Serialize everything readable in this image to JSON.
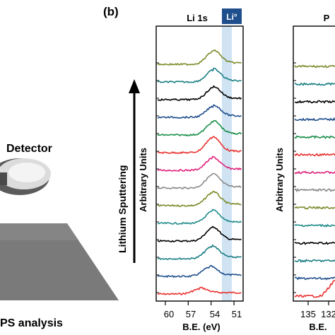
{
  "left_panel": {
    "detector_label": "Detector",
    "analysis_label": "PS analysis"
  },
  "panel_label": "(b)",
  "arrow_label": "Lithium Sputtering",
  "chart_data": [
    {
      "type": "line",
      "title": "Li 1s",
      "badge": "Li°",
      "ylabel": "Arbitrary Units",
      "xlabel": "B.E. (eV)",
      "x_ticks": [
        "60",
        "57",
        "54",
        "51"
      ],
      "x_axis": "reversed",
      "highlight_region_eV": [
        51.8,
        53.2
      ],
      "spectra_bottom_to_top": [
        {
          "color": "#e8312f",
          "peak_eV": 55.5,
          "peak_height": 0.5
        },
        {
          "color": "#1f4e8c",
          "peak_eV": 54.2,
          "peak_height": 0.9
        },
        {
          "color": "#1a7f84",
          "peak_eV": 53.9,
          "peak_height": 1.2
        },
        {
          "color": "#000000",
          "peak_eV": 53.8,
          "peak_height": 1.3
        },
        {
          "color": "#1f8a8a",
          "peak_eV": 53.8,
          "peak_height": 1.2
        },
        {
          "color": "#7d8a2a",
          "peak_eV": 53.8,
          "peak_height": 1.3
        },
        {
          "color": "#8a8a8a",
          "peak_eV": 53.8,
          "peak_height": 1.3
        },
        {
          "color": "#e0207a",
          "peak_eV": 53.8,
          "peak_height": 1.2
        },
        {
          "color": "#e8312f",
          "peak_eV": 53.8,
          "peak_height": 1.5
        },
        {
          "color": "#1a8f4a",
          "peak_eV": 53.7,
          "peak_height": 1.3
        },
        {
          "color": "#1f4e8c",
          "peak_eV": 53.7,
          "peak_height": 1.1
        },
        {
          "color": "#000000",
          "peak_eV": 53.7,
          "peak_height": 1.2
        },
        {
          "color": "#1a7f84",
          "peak_eV": 53.7,
          "peak_height": 1.2
        },
        {
          "color": "#7d8a2a",
          "peak_eV": 53.7,
          "peak_height": 1.3
        }
      ]
    },
    {
      "type": "line",
      "title": "P",
      "ylabel": "Arbitrary Units",
      "xlabel": "B.E.",
      "x_ticks": [
        "135",
        "132"
      ],
      "x_axis": "reversed"
    }
  ]
}
